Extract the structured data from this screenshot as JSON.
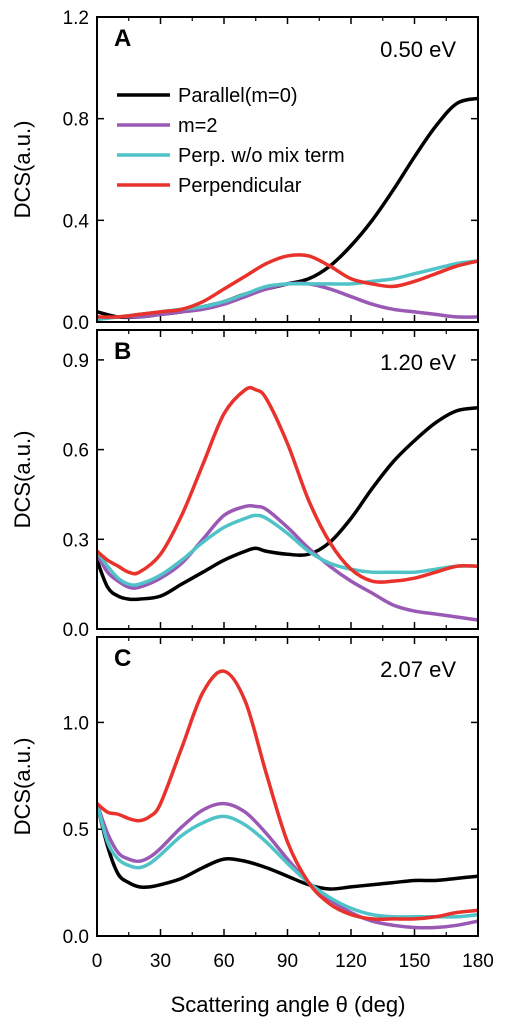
{
  "figure": {
    "xlabel": "Scattering angle θ (deg)",
    "xticks": [
      "0",
      "30",
      "60",
      "90",
      "120",
      "150",
      "180"
    ]
  },
  "colors": {
    "parallel": "#000000",
    "m2": "#9b59b6",
    "perp_nomix": "#4fc3c8",
    "perpendicular": "#e8322b"
  },
  "legend": {
    "parallel": "Parallel(m=0)",
    "m2": "m=2",
    "perp_nomix": "Perp. w/o mix term",
    "perpendicular": "Perpendicular"
  },
  "chart_data": [
    {
      "type": "line",
      "panel": "A",
      "annotation": "0.50 eV",
      "ylabel": "DCS(a.u.)",
      "xlim": [
        0,
        180
      ],
      "ylim": [
        0,
        1.2
      ],
      "yticks": [
        "0.0",
        "0.4",
        "0.8",
        "1.2"
      ],
      "x": [
        0,
        10,
        20,
        30,
        40,
        50,
        60,
        70,
        80,
        90,
        100,
        110,
        120,
        130,
        140,
        150,
        160,
        170,
        180
      ],
      "series": [
        {
          "name": "Parallel(m=0)",
          "key": "parallel",
          "values": [
            0.04,
            0.02,
            0.02,
            0.03,
            0.04,
            0.06,
            0.08,
            0.11,
            0.13,
            0.15,
            0.17,
            0.22,
            0.3,
            0.4,
            0.52,
            0.65,
            0.77,
            0.86,
            0.88
          ]
        },
        {
          "name": "m=2",
          "key": "m2",
          "values": [
            0.01,
            0.02,
            0.02,
            0.03,
            0.04,
            0.05,
            0.07,
            0.1,
            0.13,
            0.15,
            0.15,
            0.13,
            0.1,
            0.07,
            0.05,
            0.04,
            0.03,
            0.02,
            0.02
          ]
        },
        {
          "name": "Perp. w/o mix term",
          "key": "perp_nomix",
          "values": [
            0.01,
            0.02,
            0.03,
            0.04,
            0.05,
            0.06,
            0.08,
            0.11,
            0.14,
            0.15,
            0.15,
            0.15,
            0.15,
            0.16,
            0.17,
            0.19,
            0.21,
            0.23,
            0.24
          ]
        },
        {
          "name": "Perpendicular",
          "key": "perpendicular",
          "values": [
            0.02,
            0.02,
            0.03,
            0.04,
            0.05,
            0.08,
            0.13,
            0.18,
            0.23,
            0.26,
            0.26,
            0.22,
            0.17,
            0.15,
            0.14,
            0.16,
            0.19,
            0.22,
            0.24
          ]
        }
      ]
    },
    {
      "type": "line",
      "panel": "B",
      "annotation": "1.20 eV",
      "ylabel": "DCS(a.u.)",
      "xlim": [
        0,
        180
      ],
      "ylim": [
        0,
        1.0
      ],
      "yticks": [
        "0.0",
        "0.3",
        "0.6",
        "0.9"
      ],
      "x": [
        0,
        5,
        10,
        15,
        20,
        30,
        40,
        50,
        60,
        70,
        75,
        80,
        90,
        100,
        110,
        120,
        130,
        140,
        150,
        160,
        170,
        180
      ],
      "series": [
        {
          "name": "Parallel(m=0)",
          "key": "parallel",
          "values": [
            0.23,
            0.14,
            0.11,
            0.1,
            0.1,
            0.11,
            0.15,
            0.19,
            0.23,
            0.26,
            0.27,
            0.26,
            0.25,
            0.25,
            0.29,
            0.37,
            0.47,
            0.56,
            0.63,
            0.69,
            0.73,
            0.74
          ]
        },
        {
          "name": "m=2",
          "key": "m2",
          "values": [
            0.25,
            0.19,
            0.16,
            0.14,
            0.14,
            0.17,
            0.22,
            0.3,
            0.38,
            0.41,
            0.41,
            0.4,
            0.34,
            0.27,
            0.21,
            0.16,
            0.12,
            0.08,
            0.06,
            0.05,
            0.04,
            0.03
          ]
        },
        {
          "name": "Perp. w/o mix term",
          "key": "perp_nomix",
          "values": [
            0.26,
            0.21,
            0.17,
            0.15,
            0.15,
            0.18,
            0.23,
            0.29,
            0.34,
            0.37,
            0.38,
            0.37,
            0.32,
            0.26,
            0.22,
            0.2,
            0.19,
            0.19,
            0.19,
            0.2,
            0.21,
            0.21
          ]
        },
        {
          "name": "Perpendicular",
          "key": "perpendicular",
          "values": [
            0.26,
            0.23,
            0.21,
            0.19,
            0.19,
            0.25,
            0.38,
            0.55,
            0.72,
            0.8,
            0.8,
            0.77,
            0.62,
            0.43,
            0.29,
            0.2,
            0.16,
            0.16,
            0.17,
            0.19,
            0.21,
            0.21
          ]
        }
      ]
    },
    {
      "type": "line",
      "panel": "C",
      "annotation": "2.07 eV",
      "ylabel": "DCS(a.u.)",
      "xlim": [
        0,
        180
      ],
      "ylim": [
        0,
        1.4
      ],
      "yticks": [
        "0.0",
        "0.5",
        "1.0"
      ],
      "x": [
        0,
        5,
        10,
        15,
        20,
        25,
        30,
        40,
        50,
        60,
        70,
        80,
        90,
        100,
        110,
        120,
        130,
        140,
        150,
        160,
        170,
        180
      ],
      "series": [
        {
          "name": "Parallel(m=0)",
          "key": "parallel",
          "values": [
            0.62,
            0.42,
            0.29,
            0.25,
            0.23,
            0.23,
            0.24,
            0.27,
            0.32,
            0.36,
            0.35,
            0.32,
            0.28,
            0.24,
            0.22,
            0.23,
            0.24,
            0.25,
            0.26,
            0.26,
            0.27,
            0.28
          ]
        },
        {
          "name": "m=2",
          "key": "m2",
          "values": [
            0.62,
            0.48,
            0.39,
            0.36,
            0.35,
            0.37,
            0.41,
            0.51,
            0.59,
            0.62,
            0.58,
            0.48,
            0.36,
            0.25,
            0.17,
            0.11,
            0.07,
            0.05,
            0.04,
            0.04,
            0.05,
            0.07
          ]
        },
        {
          "name": "Perp. w/o mix term",
          "key": "perp_nomix",
          "values": [
            0.62,
            0.44,
            0.36,
            0.33,
            0.32,
            0.34,
            0.38,
            0.47,
            0.53,
            0.56,
            0.52,
            0.44,
            0.34,
            0.25,
            0.18,
            0.13,
            0.1,
            0.09,
            0.09,
            0.09,
            0.09,
            0.1
          ]
        },
        {
          "name": "Perpendicular",
          "key": "perpendicular",
          "values": [
            0.62,
            0.58,
            0.57,
            0.55,
            0.54,
            0.56,
            0.62,
            0.88,
            1.14,
            1.24,
            1.1,
            0.76,
            0.44,
            0.25,
            0.15,
            0.1,
            0.08,
            0.08,
            0.08,
            0.09,
            0.11,
            0.12
          ]
        }
      ]
    }
  ]
}
